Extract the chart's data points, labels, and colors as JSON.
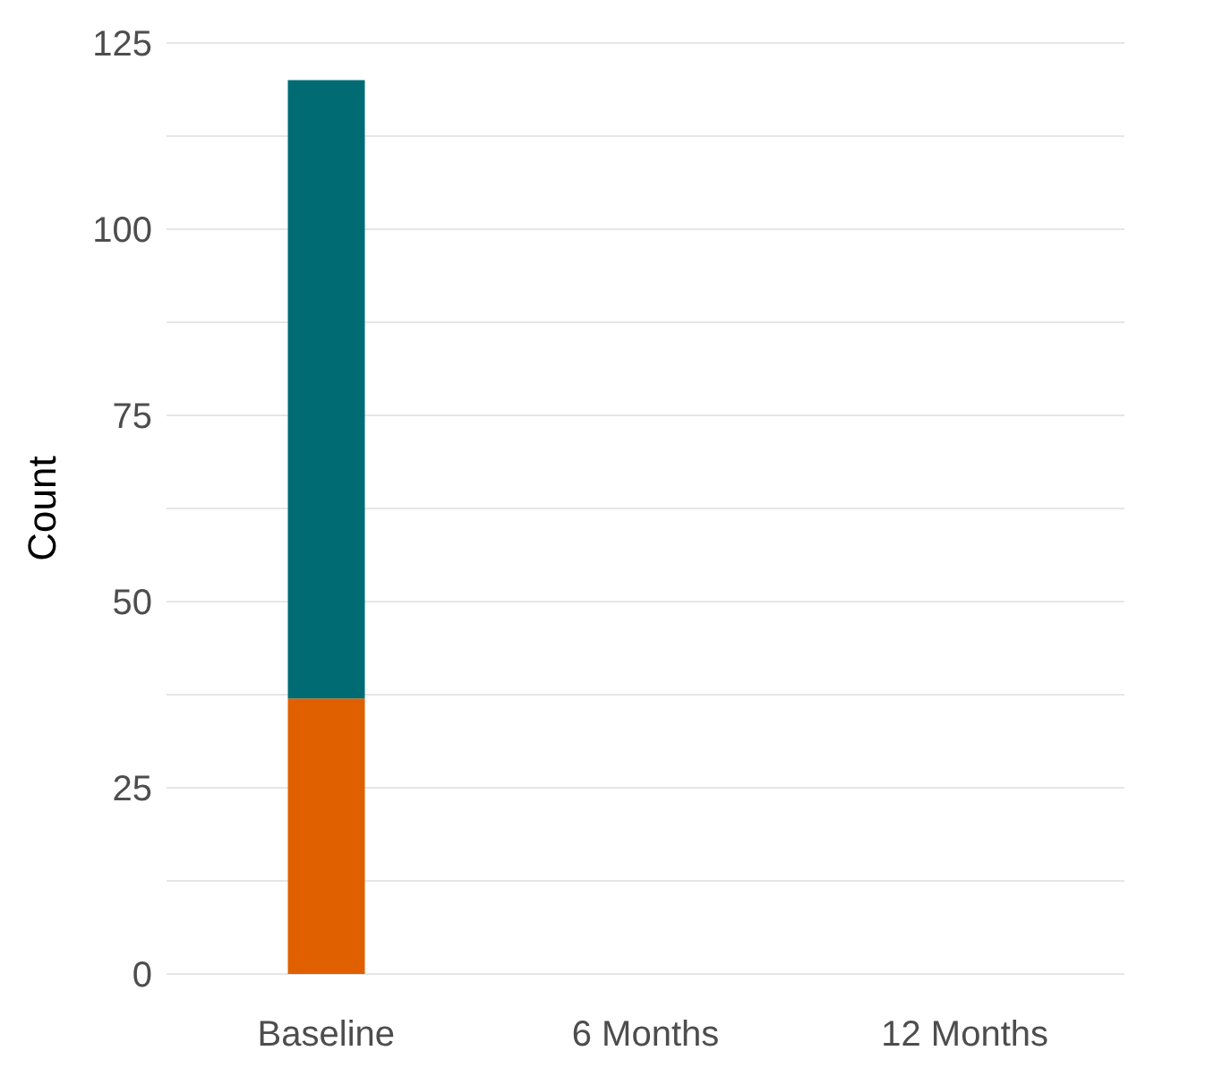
{
  "chart_data": {
    "type": "bar",
    "stacked": true,
    "ylabel": "Count",
    "categories": [
      "Baseline",
      "6 Months",
      "12 Months"
    ],
    "series": [
      {
        "color": "#e06000",
        "values": [
          37,
          null,
          null
        ]
      },
      {
        "color": "#006b73",
        "values": [
          83,
          null,
          null
        ]
      }
    ],
    "ylim": [
      0,
      125
    ],
    "yticks": [
      0,
      {
        "value": 12.5,
        "label": null
      },
      25,
      {
        "value": 37.5,
        "label": null
      },
      50,
      {
        "value": 62.5,
        "label": null
      },
      75,
      {
        "value": 87.5,
        "label": null
      },
      100,
      {
        "value": 112.5,
        "label": null
      },
      125
    ],
    "grid": "y",
    "legend": false
  }
}
